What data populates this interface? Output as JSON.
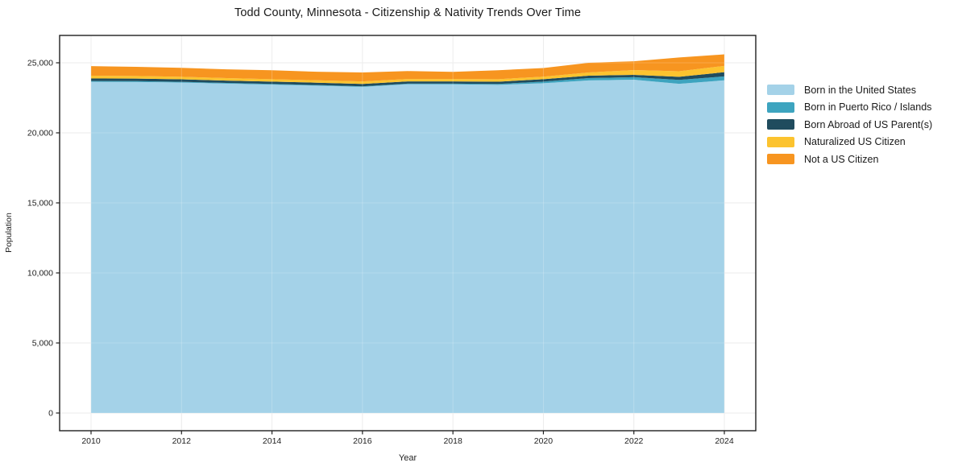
{
  "title": "Todd County, Minnesota - Citizenship & Nativity Trends Over Time",
  "chart_data": {
    "type": "area",
    "stacked": true,
    "title": "Todd County, Minnesota - Citizenship & Nativity Trends Over Time",
    "xlabel": "Year",
    "ylabel": "Population",
    "x": [
      2010,
      2011,
      2012,
      2013,
      2014,
      2015,
      2016,
      2017,
      2018,
      2019,
      2020,
      2021,
      2022,
      2023,
      2024
    ],
    "x_ticks": [
      2010,
      2012,
      2014,
      2016,
      2018,
      2020,
      2022,
      2024
    ],
    "y_ticks": [
      0,
      5000,
      10000,
      15000,
      20000,
      25000
    ],
    "y_tick_labels": [
      "0",
      "5,000",
      "10,000",
      "15,000",
      "20,000",
      "25,000"
    ],
    "x_axis_range": [
      2009.3,
      2024.7
    ],
    "y_axis_range": [
      -1265,
      26950
    ],
    "grid": true,
    "legend_position": "right",
    "series": [
      {
        "name": "Born in the United States",
        "color": "#a4d2e8",
        "values": [
          23640,
          23630,
          23590,
          23510,
          23440,
          23370,
          23280,
          23470,
          23460,
          23430,
          23540,
          23740,
          23790,
          23500,
          23750
        ]
      },
      {
        "name": "Born in Puerto Rico / Islands",
        "color": "#3da4bf",
        "values": [
          60,
          60,
          50,
          50,
          50,
          40,
          40,
          40,
          50,
          60,
          120,
          170,
          180,
          280,
          280
        ]
      },
      {
        "name": "Born Abroad of US Parent(s)",
        "color": "#204c5e",
        "values": [
          180,
          180,
          180,
          170,
          170,
          170,
          170,
          160,
          160,
          160,
          170,
          170,
          170,
          220,
          300
        ]
      },
      {
        "name": "Naturalized US Citizen",
        "color": "#fcc32f",
        "values": [
          200,
          190,
          180,
          180,
          170,
          170,
          180,
          170,
          170,
          180,
          180,
          230,
          340,
          400,
          450
        ]
      },
      {
        "name": "Not a US Citizen",
        "color": "#f79520",
        "values": [
          680,
          650,
          640,
          620,
          640,
          610,
          640,
          570,
          510,
          640,
          620,
          690,
          630,
          980,
          820
        ]
      }
    ],
    "totals": [
      24760,
      24710,
      24640,
      24530,
      24470,
      24360,
      24310,
      24410,
      24350,
      24470,
      24630,
      25000,
      25110,
      25380,
      25600
    ],
    "colors": {
      "grid": "#e7e7e7",
      "frame": "#1f1f1f",
      "tick_text": "#1f1f1f",
      "background": "#ffffff"
    }
  }
}
